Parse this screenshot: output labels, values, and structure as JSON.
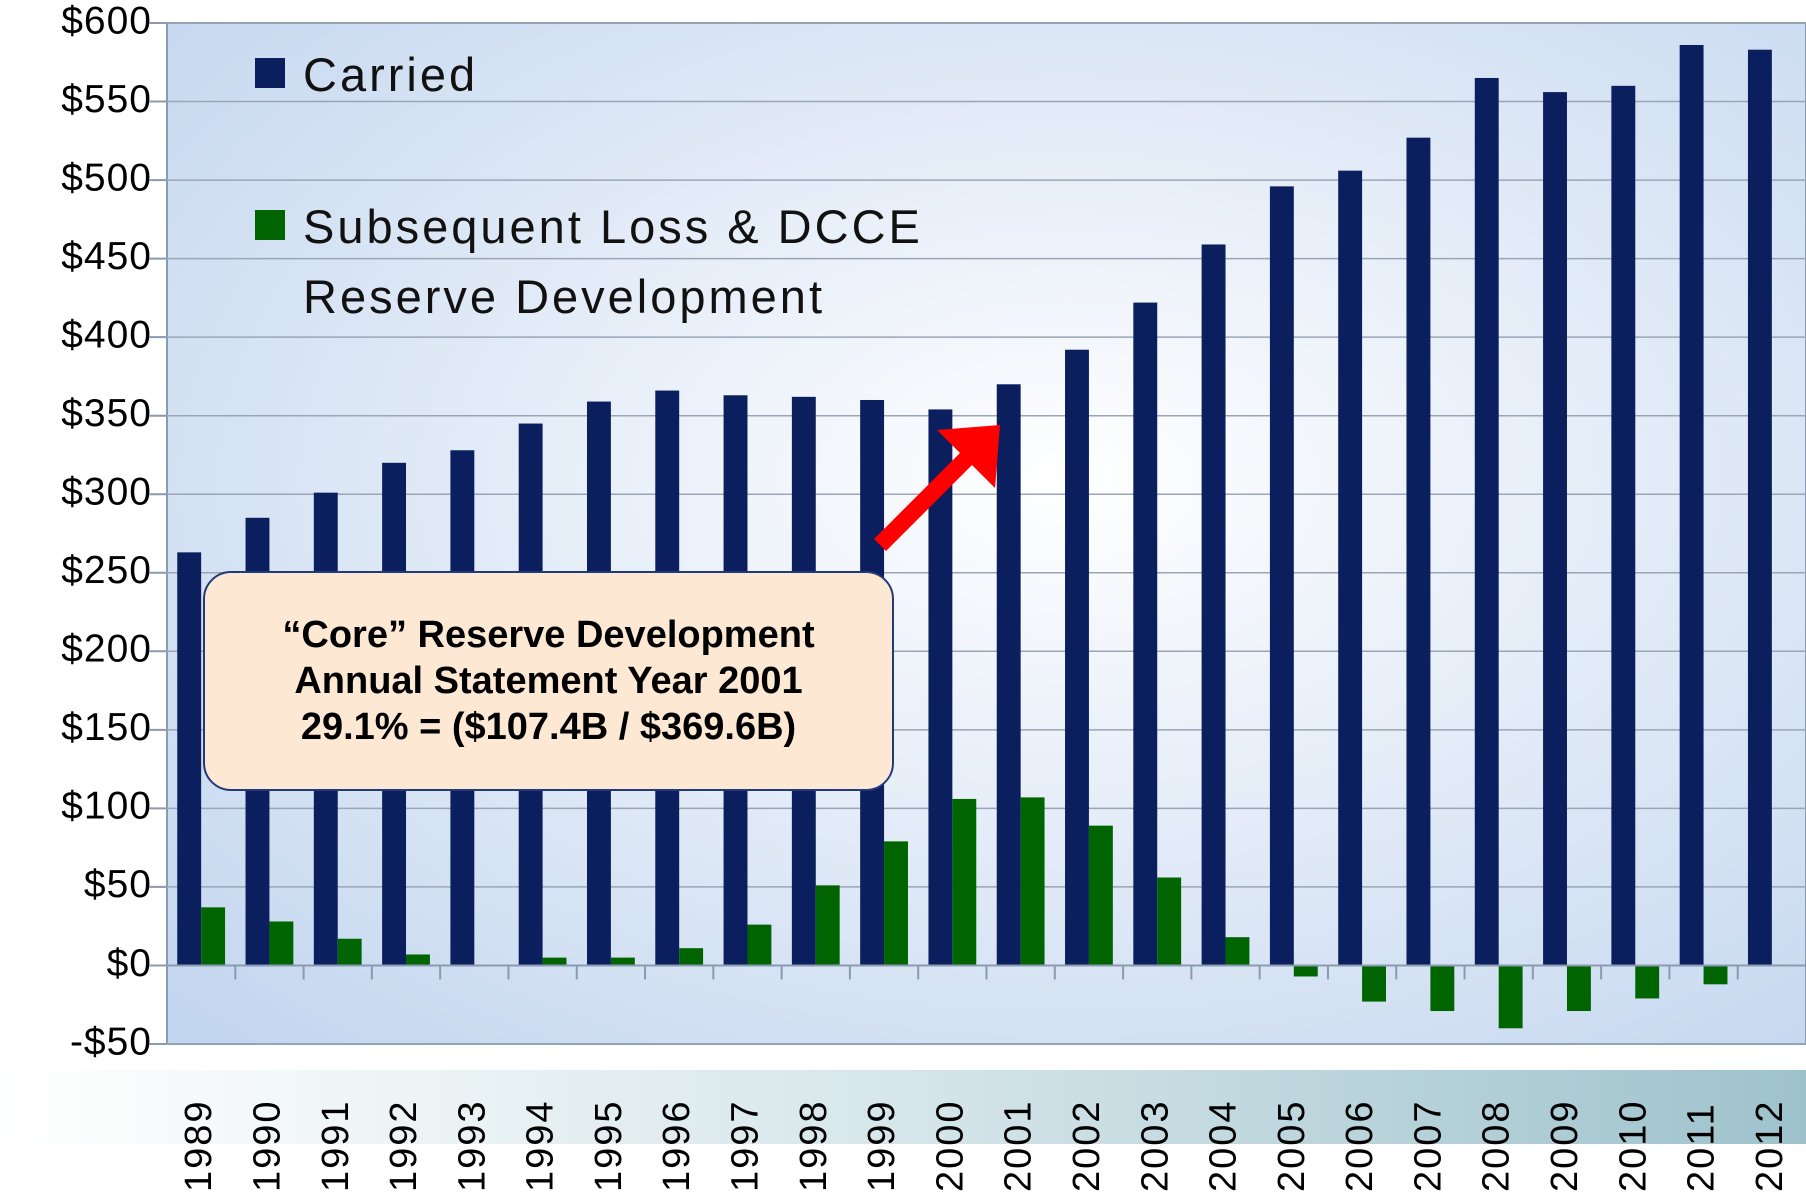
{
  "chart_data": {
    "type": "bar",
    "categories": [
      "1989",
      "1990",
      "1991",
      "1992",
      "1993",
      "1994",
      "1995",
      "1996",
      "1997",
      "1998",
      "1999",
      "2000",
      "2001",
      "2002",
      "2003",
      "2004",
      "2005",
      "2006",
      "2007",
      "2008",
      "2009",
      "2010",
      "2011",
      "2012"
    ],
    "series": [
      {
        "name": "Carried",
        "color": "#0b1f5e",
        "values": [
          263,
          285,
          301,
          320,
          328,
          345,
          359,
          366,
          363,
          362,
          360,
          354,
          370,
          392,
          422,
          459,
          496,
          506,
          527,
          565,
          556,
          560,
          586,
          583
        ]
      },
      {
        "name": "Subsequent Loss & DCCE Reserve Development",
        "color": "#006400",
        "values": [
          37,
          28,
          17,
          7,
          0,
          5,
          5,
          11,
          26,
          51,
          79,
          106,
          107,
          89,
          56,
          18,
          -7,
          -23,
          -29,
          -40,
          -29,
          -21,
          -12,
          0
        ]
      }
    ],
    "ylim": [
      -50,
      600
    ],
    "yticks": [
      {
        "value": -50,
        "label": "-$50"
      },
      {
        "value": 0,
        "label": "$0"
      },
      {
        "value": 50,
        "label": "$50"
      },
      {
        "value": 100,
        "label": "$100"
      },
      {
        "value": 150,
        "label": "$150"
      },
      {
        "value": 200,
        "label": "$200"
      },
      {
        "value": 250,
        "label": "$250"
      },
      {
        "value": 300,
        "label": "$300"
      },
      {
        "value": 350,
        "label": "$350"
      },
      {
        "value": 400,
        "label": "$400"
      },
      {
        "value": 450,
        "label": "$450"
      },
      {
        "value": 500,
        "label": "$500"
      },
      {
        "value": 550,
        "label": "$550"
      },
      {
        "value": 600,
        "label": "$600"
      }
    ],
    "grid": true,
    "annotation": {
      "lines": [
        "“Core” Reserve Development",
        "Annual Statement Year 2001",
        "29.1% = ($107.4B / $369.6B)"
      ]
    }
  }
}
